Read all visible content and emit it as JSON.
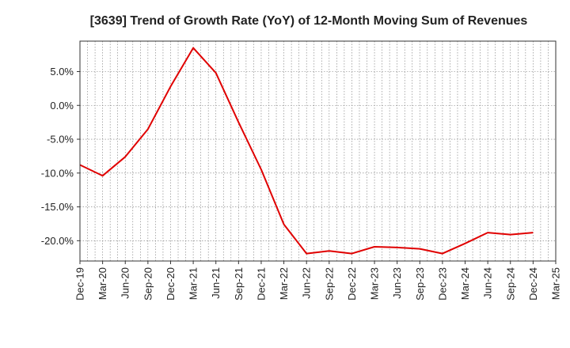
{
  "chart_data": {
    "type": "line",
    "title": "[3639]  Trend of Growth Rate (YoY) of 12-Month Moving Sum of Revenues",
    "xlabel": "",
    "ylabel": "",
    "categories": [
      "Dec-19",
      "Mar-20",
      "Jun-20",
      "Sep-20",
      "Dec-20",
      "Mar-21",
      "Jun-21",
      "Sep-21",
      "Dec-21",
      "Mar-22",
      "Jun-22",
      "Sep-22",
      "Dec-22",
      "Mar-23",
      "Jun-23",
      "Sep-23",
      "Dec-23",
      "Mar-24",
      "Jun-24",
      "Sep-24",
      "Dec-24",
      "Mar-25"
    ],
    "series": [
      {
        "color": "#e00000",
        "values": [
          -8.8,
          -10.4,
          -7.6,
          -3.5,
          2.8,
          8.5,
          4.8,
          -2.5,
          -9.5,
          -17.6,
          -21.9,
          -21.5,
          -21.9,
          -20.9,
          -21.0,
          -21.2,
          -21.9,
          -20.4,
          -18.8,
          -19.1,
          -18.8,
          null
        ]
      }
    ],
    "yticks": [
      "5.0%",
      "0.0%",
      "-5.0%",
      "-10.0%",
      "-15.0%",
      "-20.0%"
    ],
    "ytick_values": [
      5,
      0,
      -5,
      -10,
      -15,
      -20
    ],
    "ylim": [
      -23.0,
      9.5
    ],
    "grid": true,
    "grid_style": "dotted",
    "legend": "none",
    "colors": {
      "line": "#e00000",
      "grid": "#777777",
      "axis": "#333333"
    }
  }
}
